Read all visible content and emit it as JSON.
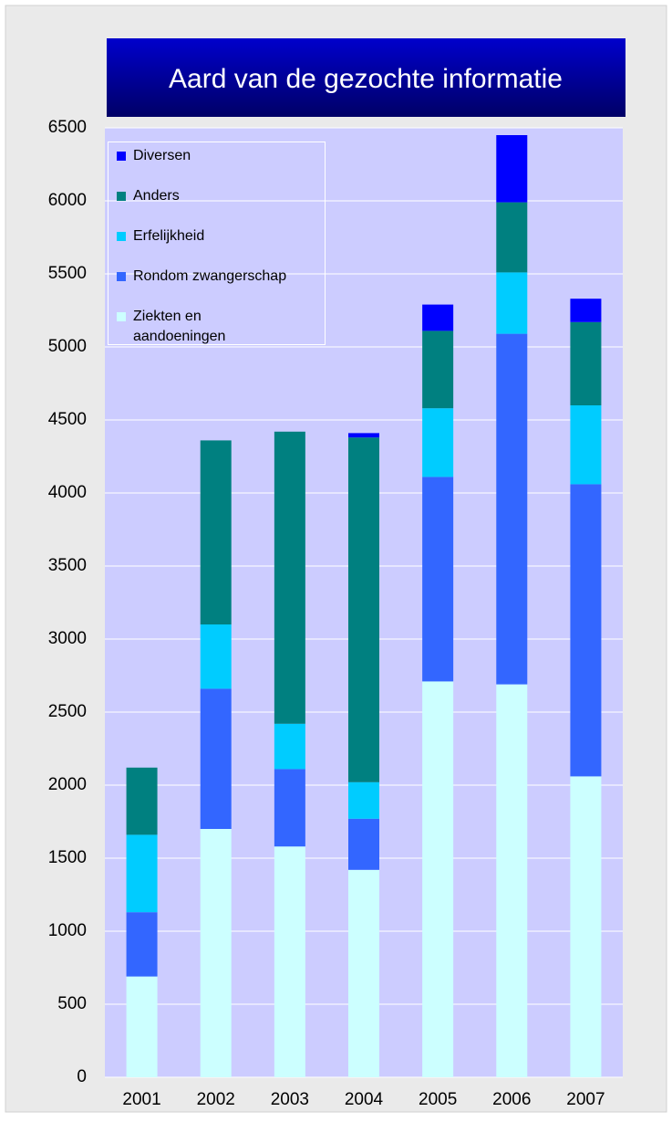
{
  "chart_data": {
    "type": "bar",
    "stacked": true,
    "title": "Aard van de gezochte informatie",
    "categories": [
      "2001",
      "2002",
      "2003",
      "2004",
      "2005",
      "2006",
      "2007"
    ],
    "series": [
      {
        "name": "Ziekten en aandoeningen",
        "color": "#ccffff",
        "values": [
          690,
          1700,
          1580,
          1420,
          2710,
          2690,
          2060
        ]
      },
      {
        "name": "Rondom zwangerschap",
        "color": "#3366ff",
        "values": [
          440,
          960,
          530,
          350,
          1400,
          2400,
          2000
        ]
      },
      {
        "name": "Erfelijkheid",
        "color": "#00ccff",
        "values": [
          530,
          440,
          310,
          250,
          470,
          420,
          540
        ]
      },
      {
        "name": "Anders",
        "color": "#008080",
        "values": [
          460,
          1260,
          2000,
          2360,
          530,
          480,
          570
        ]
      },
      {
        "name": "Diversen",
        "color": "#0000ff",
        "values": [
          0,
          0,
          0,
          30,
          180,
          460,
          160
        ]
      }
    ],
    "ylim": [
      0,
      6500
    ],
    "yticks": [
      0,
      500,
      1000,
      1500,
      2000,
      2500,
      3000,
      3500,
      4000,
      4500,
      5000,
      5500,
      6000,
      6500
    ],
    "grid": true,
    "legend": "top-left"
  }
}
